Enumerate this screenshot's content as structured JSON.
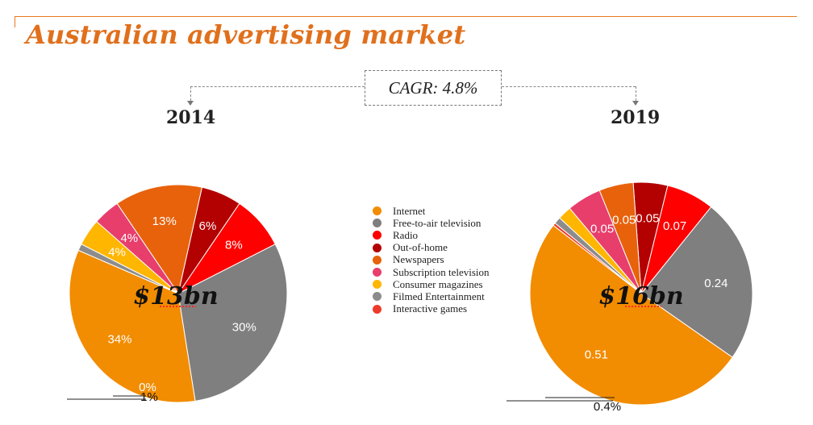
{
  "title": "Australian advertising market",
  "cagr": "CAGR: 4.8%",
  "chart_data": [
    {
      "type": "pie",
      "title": "2014",
      "total_label": "$13bn",
      "categories": [
        "Internet",
        "Free-to-air television",
        "Radio",
        "Out-of-home",
        "Newspapers",
        "Subscription television",
        "Consumer magazines",
        "Filmed Entertainment",
        "Interactive games"
      ],
      "values": [
        34,
        30,
        8,
        6,
        13,
        4,
        4,
        1,
        0
      ],
      "labels": [
        "34%",
        "30%",
        "8%",
        "6%",
        "13%",
        "4%",
        "4%",
        "1%",
        "0%"
      ]
    },
    {
      "type": "pie",
      "title": "2019",
      "total_label": "$16bn",
      "categories": [
        "Internet",
        "Free-to-air television",
        "Radio",
        "Out-of-home",
        "Newspapers",
        "Subscription television",
        "Consumer magazines",
        "Filmed Entertainment",
        "Interactive games"
      ],
      "values": [
        0.51,
        0.24,
        0.07,
        0.05,
        0.05,
        0.05,
        0.02,
        0.01,
        0.004
      ],
      "labels": [
        "0.51",
        "0.24",
        "0.07",
        "0.05",
        "0.05",
        "0.05",
        "",
        "",
        "0.4%"
      ]
    }
  ],
  "legend": {
    "placement": "center",
    "items": [
      {
        "label": "Internet",
        "color": "#f28c00"
      },
      {
        "label": "Free-to-air television",
        "color": "#7f7f7f"
      },
      {
        "label": "Radio",
        "color": "#ff0000"
      },
      {
        "label": "Out-of-home",
        "color": "#b30000"
      },
      {
        "label": "Newspapers",
        "color": "#e8620c"
      },
      {
        "label": "Subscription television",
        "color": "#e83e6c"
      },
      {
        "label": "Consumer magazines",
        "color": "#ffb600"
      },
      {
        "label": "Filmed Entertainment",
        "color": "#8c8c8c"
      },
      {
        "label": "Interactive games",
        "color": "#ee3a2a"
      }
    ]
  }
}
